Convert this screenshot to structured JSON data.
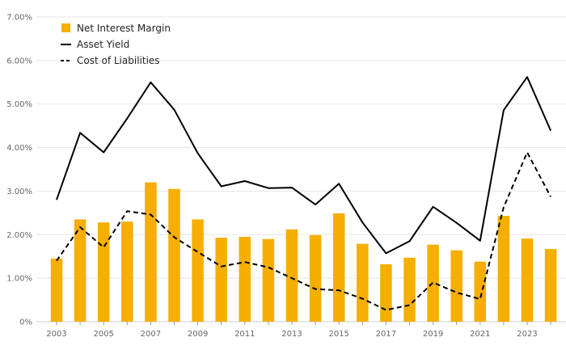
{
  "colors": {
    "bar": "#F6AE00",
    "asset_line": "#000000",
    "liability_line": "#000000",
    "grid": "#e6e6e6",
    "axis_text": "#666666"
  },
  "legend": {
    "nim": "Net Interest Margin",
    "asset": "Asset Yield",
    "liab": "Cost of Liabilities",
    "placement": "top-left"
  },
  "chart_data": {
    "type": "bar",
    "x": [
      2003,
      2004,
      2005,
      2006,
      2007,
      2008,
      2009,
      2010,
      2011,
      2012,
      2013,
      2014,
      2015,
      2016,
      2017,
      2018,
      2019,
      2020,
      2021,
      2022,
      2023,
      2024
    ],
    "x_tick_labels": [
      "2003",
      "2005",
      "2007",
      "2009",
      "2011",
      "2013",
      "2015",
      "2017",
      "2019",
      "2021",
      "2023"
    ],
    "y_tick_labels": [
      "0%",
      "1.00%",
      "2.00%",
      "3.00%",
      "4.00%",
      "5.00%",
      "6.00%",
      "7.00%"
    ],
    "ylim": [
      0,
      7
    ],
    "grid": true,
    "series": [
      {
        "name": "Net Interest Margin",
        "type": "bar",
        "values": [
          1.45,
          2.35,
          2.28,
          2.3,
          3.2,
          3.05,
          2.35,
          1.93,
          1.95,
          1.9,
          2.12,
          1.99,
          2.49,
          1.79,
          1.32,
          1.47,
          1.77,
          1.64,
          1.38,
          2.43,
          1.91,
          1.67
        ]
      },
      {
        "name": "Asset Yield",
        "type": "line",
        "style": "solid",
        "values": [
          2.8,
          4.34,
          3.89,
          4.67,
          5.5,
          4.87,
          3.87,
          3.11,
          3.23,
          3.07,
          3.08,
          2.69,
          3.17,
          2.28,
          1.57,
          1.85,
          2.64,
          2.27,
          1.86,
          4.86,
          5.62,
          4.39
        ]
      },
      {
        "name": "Cost of Liabilities",
        "type": "line",
        "style": "dashed",
        "values": [
          1.4,
          2.17,
          1.71,
          2.54,
          2.46,
          1.94,
          1.6,
          1.27,
          1.37,
          1.25,
          1.0,
          0.75,
          0.72,
          0.53,
          0.27,
          0.38,
          0.9,
          0.67,
          0.52,
          2.63,
          3.89,
          2.87
        ]
      }
    ]
  }
}
